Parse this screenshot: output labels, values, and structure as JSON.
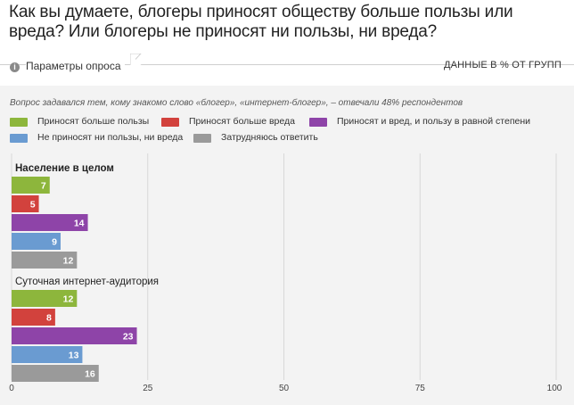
{
  "page": {
    "title": "Как вы думаете, блогеры приносят обществу больше пользы или вреда? Или блогеры не приносят ни пользы, ни вреда?",
    "params_label": "Параметры опроса",
    "data_label": "ДАННЫЕ В % ОТ ГРУПП",
    "subtitle": "Вопрос задавался тем, кому знакомо слово «блогер», «интернет-блогер», – отвечали 48% респондентов",
    "info_icon": "info-icon"
  },
  "colors": {
    "green": "#8db63c",
    "red": "#d2423d",
    "purple": "#8e44a8",
    "blue": "#6a9bd1",
    "gray": "#9a9a9a",
    "grid": "#d8d8d8",
    "panel": "#f3f3f3"
  },
  "chart_data": {
    "type": "bar",
    "orientation": "horizontal",
    "xlim": [
      0,
      100
    ],
    "x_ticks": [
      "0",
      "25",
      "50",
      "75",
      "100"
    ],
    "grid": true,
    "legend_position": "top-left",
    "series": [
      {
        "name": "Приносят больше пользы",
        "color": "#8db63c"
      },
      {
        "name": "Приносят больше вреда",
        "color": "#d2423d"
      },
      {
        "name": "Приносят и вред, и пользу в равной степени",
        "color": "#8e44a8"
      },
      {
        "name": "Не приносят ни пользы, ни вреда",
        "color": "#6a9bd1"
      },
      {
        "name": "Затрудняюсь ответить",
        "color": "#9a9a9a"
      }
    ],
    "groups": [
      {
        "label": "Население в целом",
        "bold": true,
        "values": [
          7,
          5,
          14,
          9,
          12
        ]
      },
      {
        "label": "Суточная интернет-аудитория",
        "bold": false,
        "values": [
          12,
          8,
          23,
          13,
          16
        ]
      }
    ]
  }
}
